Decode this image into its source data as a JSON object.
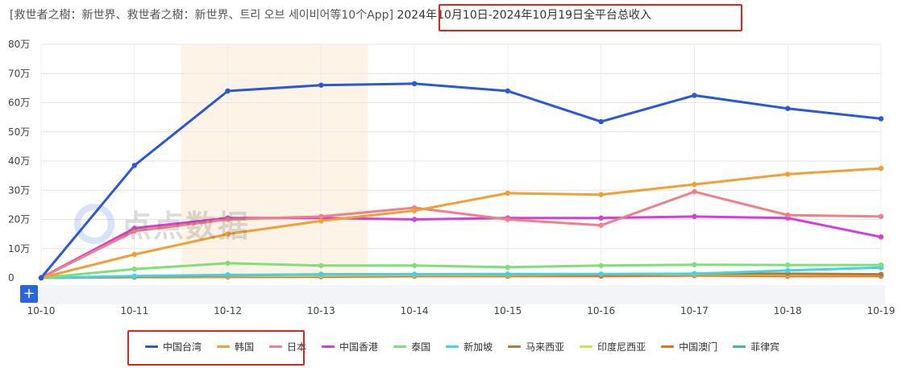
{
  "header": {
    "title_prefix": "[救世者之樹：新世界、救世者之樹：新世界、트리 오브 세이비어等10个App]",
    "title_range": "2024年10月10日-2024年10月19日全平台总收入"
  },
  "watermark": {
    "text": "点点数据"
  },
  "zoom": {
    "plus_label": "+"
  },
  "colors": {
    "中国台湾": "#2b58d6",
    "韩国": "#f0a035",
    "日本": "#f07f86",
    "中国香港": "#d33fd8",
    "泰国": "#7fe078",
    "新加坡": "#41d4e8",
    "马来西亚": "#b07a3e",
    "印度尼西亚": "#c7e64a",
    "中国澳门": "#f26a1b",
    "菲律宾": "#3fb8a0",
    "highlight_band": "#fdf3e6",
    "red_box": "#e0231c"
  },
  "chart_data": {
    "type": "line",
    "title": "",
    "xlabel": "",
    "ylabel": "",
    "x": [
      "10-10",
      "10-11",
      "10-12",
      "10-13",
      "10-14",
      "10-15",
      "10-16",
      "10-17",
      "10-18",
      "10-19"
    ],
    "y_ticks": [
      "80万",
      "70万",
      "60万",
      "50万",
      "40万",
      "30万",
      "20万",
      "10万",
      "0"
    ],
    "ylim": [
      0,
      800000
    ],
    "grid": true,
    "legend_position": "bottom",
    "highlight_range": [
      "10-12",
      "10-13"
    ],
    "series": [
      {
        "name": "中国台湾",
        "values": [
          0,
          385000,
          640000,
          660000,
          665000,
          640000,
          535000,
          625000,
          580000,
          545000
        ]
      },
      {
        "name": "韩国",
        "values": [
          0,
          80000,
          150000,
          195000,
          230000,
          290000,
          285000,
          320000,
          355000,
          375000
        ]
      },
      {
        "name": "日本",
        "values": [
          0,
          160000,
          200000,
          210000,
          240000,
          200000,
          180000,
          295000,
          215000,
          210000
        ]
      },
      {
        "name": "中国香港",
        "values": [
          0,
          170000,
          205000,
          205000,
          200000,
          205000,
          205000,
          210000,
          205000,
          140000
        ]
      },
      {
        "name": "泰国",
        "values": [
          0,
          30000,
          50000,
          42000,
          42000,
          36000,
          42000,
          45000,
          44000,
          44000
        ]
      },
      {
        "name": "新加坡",
        "values": [
          0,
          6000,
          10000,
          11000,
          12000,
          13000,
          13000,
          14000,
          25000,
          35000
        ]
      },
      {
        "name": "马来西亚",
        "values": [
          0,
          4000,
          8000,
          12000,
          12000,
          12000,
          12000,
          14000,
          14000,
          12000
        ]
      },
      {
        "name": "印度尼西亚",
        "values": [
          0,
          3000,
          6000,
          8000,
          10000,
          10000,
          12000,
          12000,
          11000,
          11000
        ]
      },
      {
        "name": "中国澳门",
        "values": [
          0,
          2000,
          3000,
          4000,
          6000,
          6000,
          6000,
          8000,
          6000,
          6000
        ]
      },
      {
        "name": "菲律宾",
        "values": [
          0,
          4000,
          10000,
          7000,
          8000,
          9000,
          8000,
          9000,
          8000,
          8000
        ]
      }
    ]
  }
}
